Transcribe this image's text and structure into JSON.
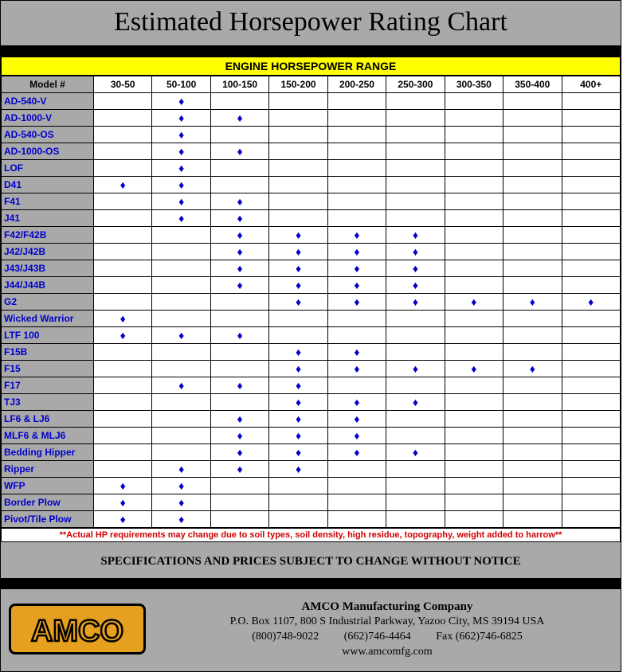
{
  "title": "Estimated Horsepower Rating Chart",
  "subtitle": "ENGINE HORSEPOWER RANGE",
  "columns": [
    "30-50",
    "50-100",
    "100-150",
    "150-200",
    "200-250",
    "250-300",
    "300-350",
    "350-400",
    "400+"
  ],
  "model_header": "Model #",
  "marker": "♦",
  "marker_color": "#0000cc",
  "header_bg": "#a9a9a9",
  "subtitle_bg": "#ffff00",
  "rows": [
    {
      "model": "AD-540-V",
      "cells": [
        0,
        1,
        0,
        0,
        0,
        0,
        0,
        0,
        0
      ]
    },
    {
      "model": "AD-1000-V",
      "cells": [
        0,
        1,
        1,
        0,
        0,
        0,
        0,
        0,
        0
      ]
    },
    {
      "model": "AD-540-OS",
      "cells": [
        0,
        1,
        0,
        0,
        0,
        0,
        0,
        0,
        0
      ]
    },
    {
      "model": "AD-1000-OS",
      "cells": [
        0,
        1,
        1,
        0,
        0,
        0,
        0,
        0,
        0
      ]
    },
    {
      "model": "LOF",
      "cells": [
        0,
        1,
        0,
        0,
        0,
        0,
        0,
        0,
        0
      ]
    },
    {
      "model": "D41",
      "cells": [
        1,
        1,
        0,
        0,
        0,
        0,
        0,
        0,
        0
      ]
    },
    {
      "model": "F41",
      "cells": [
        0,
        1,
        1,
        0,
        0,
        0,
        0,
        0,
        0
      ]
    },
    {
      "model": "J41",
      "cells": [
        0,
        1,
        1,
        0,
        0,
        0,
        0,
        0,
        0
      ]
    },
    {
      "model": "F42/F42B",
      "cells": [
        0,
        0,
        1,
        1,
        1,
        1,
        0,
        0,
        0
      ]
    },
    {
      "model": "J42/J42B",
      "cells": [
        0,
        0,
        1,
        1,
        1,
        1,
        0,
        0,
        0
      ]
    },
    {
      "model": "J43/J43B",
      "cells": [
        0,
        0,
        1,
        1,
        1,
        1,
        0,
        0,
        0
      ]
    },
    {
      "model": "J44/J44B",
      "cells": [
        0,
        0,
        1,
        1,
        1,
        1,
        0,
        0,
        0
      ]
    },
    {
      "model": "G2",
      "cells": [
        0,
        0,
        0,
        1,
        1,
        1,
        1,
        1,
        1
      ]
    },
    {
      "model": "Wicked Warrior",
      "cells": [
        1,
        0,
        0,
        0,
        0,
        0,
        0,
        0,
        0
      ]
    },
    {
      "model": "LTF 100",
      "cells": [
        1,
        1,
        1,
        0,
        0,
        0,
        0,
        0,
        0
      ]
    },
    {
      "model": "F15B",
      "cells": [
        0,
        0,
        0,
        1,
        1,
        0,
        0,
        0,
        0
      ]
    },
    {
      "model": "F15",
      "cells": [
        0,
        0,
        0,
        1,
        1,
        1,
        1,
        1,
        0
      ]
    },
    {
      "model": "F17",
      "cells": [
        0,
        1,
        1,
        1,
        0,
        0,
        0,
        0,
        0
      ]
    },
    {
      "model": "TJ3",
      "cells": [
        0,
        0,
        0,
        1,
        1,
        1,
        0,
        0,
        0
      ]
    },
    {
      "model": "LF6 & LJ6",
      "cells": [
        0,
        0,
        1,
        1,
        1,
        0,
        0,
        0,
        0
      ]
    },
    {
      "model": "MLF6 & MLJ6",
      "cells": [
        0,
        0,
        1,
        1,
        1,
        0,
        0,
        0,
        0
      ]
    },
    {
      "model": "Bedding Hipper",
      "cells": [
        0,
        0,
        1,
        1,
        1,
        1,
        0,
        0,
        0
      ]
    },
    {
      "model": "Ripper",
      "cells": [
        0,
        1,
        1,
        1,
        0,
        0,
        0,
        0,
        0
      ]
    },
    {
      "model": "WFP",
      "cells": [
        1,
        1,
        0,
        0,
        0,
        0,
        0,
        0,
        0
      ]
    },
    {
      "model": "Border Plow",
      "cells": [
        1,
        1,
        0,
        0,
        0,
        0,
        0,
        0,
        0
      ]
    },
    {
      "model": "Pivot/Tile Plow",
      "cells": [
        1,
        1,
        0,
        0,
        0,
        0,
        0,
        0,
        0
      ]
    }
  ],
  "footnote": "**Actual HP requirements may change due to soil types, soil density, high residue, topography, weight added to harrow**",
  "notice": "SPECIFICATIONS AND PRICES SUBJECT TO CHANGE WITHOUT NOTICE",
  "logo_text": "AMCO",
  "logo_bg": "#e6a01f",
  "company": {
    "name": "AMCO Manufacturing Company",
    "address": "P.O. Box 1107, 800 S Industrial Parkway, Yazoo City, MS 39194 USA",
    "phone1": "(800)748-9022",
    "phone2": "(662)746-4464",
    "fax": "Fax (662)746-6825",
    "web": "www.amcomfg.com"
  }
}
